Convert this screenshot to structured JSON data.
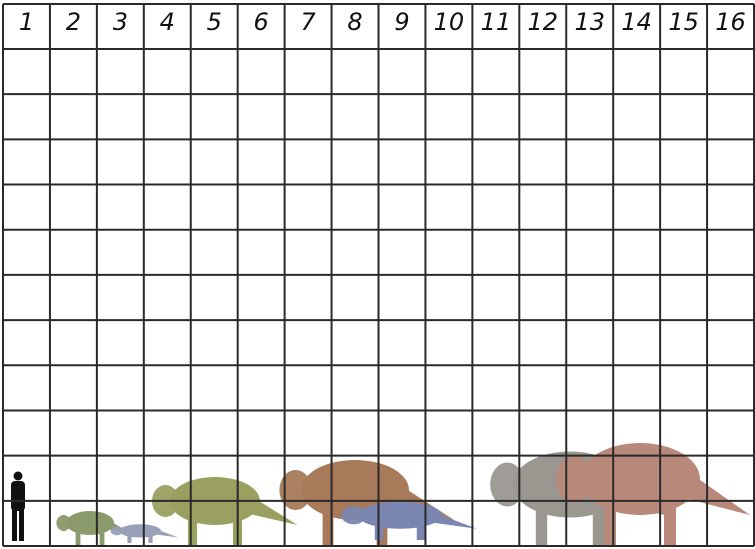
{
  "header": {
    "columns": [
      "1",
      "2",
      "3",
      "4",
      "5",
      "6",
      "7",
      "8",
      "9",
      "10",
      "11",
      "12",
      "13",
      "14",
      "15",
      "16"
    ]
  },
  "grid": {
    "rows": 11,
    "line_color": "#2a2a2a"
  },
  "figures": [
    {
      "name": "human-silhouette",
      "color": "#111111"
    },
    {
      "name": "dinosaur-small-green",
      "color": "#8a9a6a"
    },
    {
      "name": "dinosaur-small-blue",
      "color": "#9aa0b8"
    },
    {
      "name": "dinosaur-horned-green",
      "color": "#9aa060"
    },
    {
      "name": "dinosaur-horned-tan",
      "color": "#a87a5a"
    },
    {
      "name": "dinosaur-blue-spotted",
      "color": "#7a86b0"
    },
    {
      "name": "dinosaur-frilled-grey",
      "color": "#9a9690"
    },
    {
      "name": "dinosaur-frilled-red",
      "color": "#b8887a"
    }
  ]
}
